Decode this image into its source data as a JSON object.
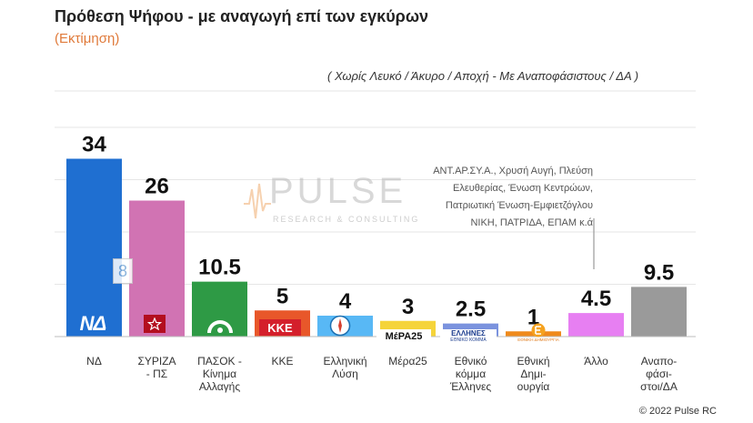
{
  "header": {
    "title": "Πρόθεση Ψήφου - με αναγωγή επί των εγκύρων",
    "subtitle": "(Εκτίμηση)",
    "note": "( Χωρίς Λευκό / Άκυρο / Αποχή  -  Με Αναποφάσιστους / ΔΑ )"
  },
  "others_note": [
    "ΑΝΤ.ΑΡ.ΣΥ.Α., Χρυσή Αυγή, Πλεύση",
    "Ελευθερίας, Ένωση Κεντρώων,",
    "Πατριωτική Ένωση-Εμφιετζόγλου",
    "ΝΙΚΗ, ΠΑΤΡΙΔΑ, ΕΠΑΜ    κ.ά"
  ],
  "watermark": {
    "name": "PULSE",
    "tagline": "RESEARCH & CONSULTING"
  },
  "footer": "© 2022 Pulse RC",
  "colors": {
    "ND": "#1f6fd1",
    "SYRIZA": "#d173b3",
    "PASOK": "#2e9a45",
    "KKE": "#e8572a",
    "EL": "#58b8f5",
    "MERA25": "#f5d43a",
    "ETHNIKO": "#7b93de",
    "ETHNIKI_DIM": "#ef8a1b",
    "ALLO": "#e77ff2",
    "ANAPOF": "#9a9a9a",
    "grid": "#e6e6e6",
    "baseline": "#bdbdbd"
  },
  "logos": {
    "nd": "ΝΔ",
    "kke": "ΚΚΕ",
    "mera25": "ΜέΡΑ25",
    "ellines_top": "ΕΛΛΗΝΕΣ",
    "ellines_bottom": "ΕΘΝΙΚΟ ΚΟΜΜΑ",
    "ethniki_dim": "ΕΘΝΙΚΗ ΔΗΜΙΟΥΡΓΙΑ",
    "nd_embedded_mark": "8"
  },
  "chart_data": {
    "type": "bar",
    "categories": [
      "ΝΔ",
      "ΣΥΡΙΖΑ - ΠΣ",
      "ΠΑΣΟΚ - Κίνημα Αλλαγής",
      "ΚΚΕ",
      "Ελληνική Λύση",
      "Μέρα25",
      "Εθνικό κόμμα Έλληνες",
      "Εθνική Δημι-ουργία",
      "Άλλο",
      "Αναπο-φάσι-στοι/ΔΑ"
    ],
    "category_label_lines": [
      [
        "ΝΔ"
      ],
      [
        "ΣΥΡΙΖΑ",
        "- ΠΣ"
      ],
      [
        "ΠΑΣΟΚ -",
        "Κίνημα",
        "Αλλαγής"
      ],
      [
        "ΚΚΕ"
      ],
      [
        "Ελληνική",
        "Λύση"
      ],
      [
        "Μέρα25"
      ],
      [
        "Εθνικό",
        "κόμμα",
        "Έλληνες"
      ],
      [
        "Εθνική",
        "Δημι-",
        "ουργία"
      ],
      [
        "Άλλο"
      ],
      [
        "Αναπο-",
        "φάσι-",
        "στοι/ΔΑ"
      ]
    ],
    "values": [
      34,
      26,
      10.5,
      5,
      4,
      3,
      2.5,
      1,
      4.5,
      9.5
    ],
    "value_labels": [
      "34",
      "26",
      "10.5",
      "5",
      "4",
      "3",
      "2.5",
      "1",
      "4.5",
      "9.5"
    ],
    "color_keys": [
      "ND",
      "SYRIZA",
      "PASOK",
      "KKE",
      "EL",
      "MERA25",
      "ETHNIKO",
      "ETHNIKI_DIM",
      "ALLO",
      "ANAPOF"
    ],
    "ylim": [
      0,
      40
    ],
    "grid": true,
    "legend": "none",
    "xlabel": "",
    "ylabel": ""
  }
}
